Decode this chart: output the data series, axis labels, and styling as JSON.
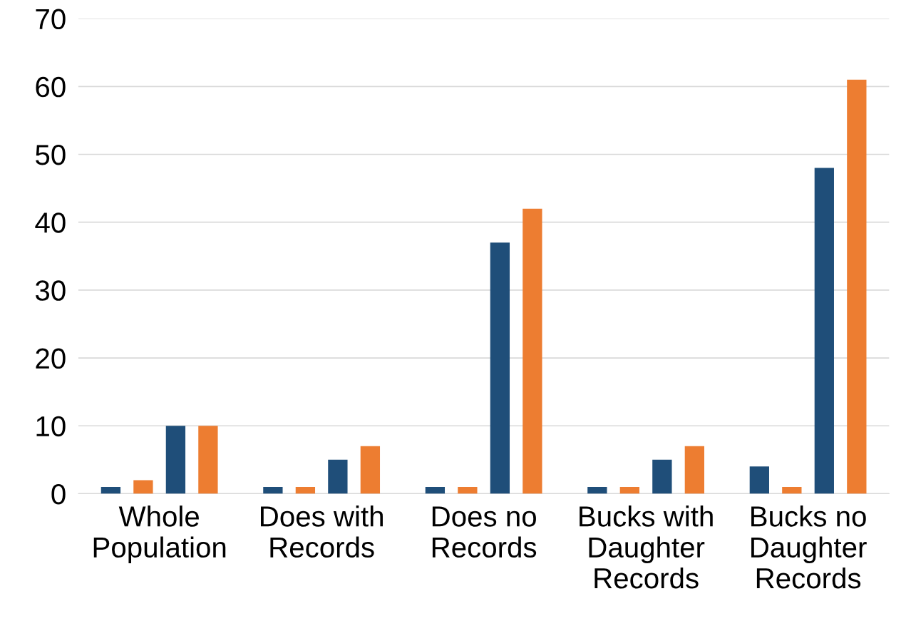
{
  "chart_data": {
    "type": "bar",
    "categories": [
      "Whole\nPopulation",
      "Does with\nRecords",
      "Does no\nRecords",
      "Bucks with\nDaughter\nRecords",
      "Bucks no\nDaughter\nRecords"
    ],
    "series": [
      {
        "color": "#1f4e79",
        "values": [
          1,
          1,
          1,
          1,
          4
        ]
      },
      {
        "color": "#ed7d31",
        "values": [
          2,
          1,
          1,
          1,
          1
        ]
      },
      {
        "color": "#1f4e79",
        "values": [
          10,
          5,
          37,
          5,
          48
        ]
      },
      {
        "color": "#ed7d31",
        "values": [
          10,
          7,
          42,
          7,
          61
        ]
      }
    ],
    "ylim": [
      0,
      70
    ],
    "yticks": [
      0,
      10,
      20,
      30,
      40,
      50,
      60,
      70
    ],
    "grid": "y"
  }
}
